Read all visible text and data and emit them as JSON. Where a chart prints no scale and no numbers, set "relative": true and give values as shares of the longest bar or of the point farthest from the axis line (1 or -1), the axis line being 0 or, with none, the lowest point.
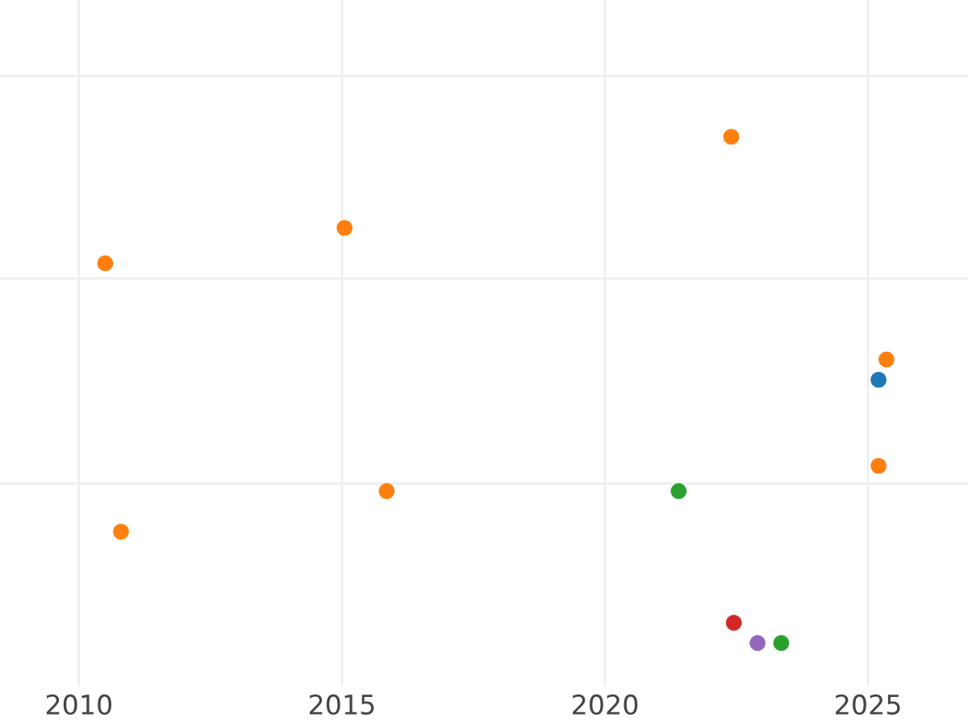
{
  "chart_data": {
    "type": "scatter",
    "relative": true,
    "xlim": [
      2008.5,
      2026.9
    ],
    "xticks": [
      2010,
      2015,
      2020,
      2025
    ],
    "tick_labels": "x",
    "grid": true,
    "marker": "circle",
    "series": [
      {
        "color": "#ff7f0e",
        "x": [
          2010.5,
          2015.05,
          2010.8,
          2015.85,
          2022.4,
          2025.35,
          2025.2
        ],
        "values": [
          0.75,
          0.82,
          0.22,
          0.3,
          1.0,
          0.56,
          0.35
        ]
      },
      {
        "color": "#1f77b4",
        "x": [
          2025.2
        ],
        "values": [
          0.52
        ]
      },
      {
        "color": "#2ca02c",
        "x": [
          2021.4,
          2023.35
        ],
        "values": [
          0.3,
          0.0
        ]
      },
      {
        "color": "#d62728",
        "x": [
          2022.45
        ],
        "values": [
          0.04
        ]
      },
      {
        "color": "#9467bd",
        "x": [
          2022.9
        ],
        "values": [
          0.0
        ]
      }
    ]
  }
}
